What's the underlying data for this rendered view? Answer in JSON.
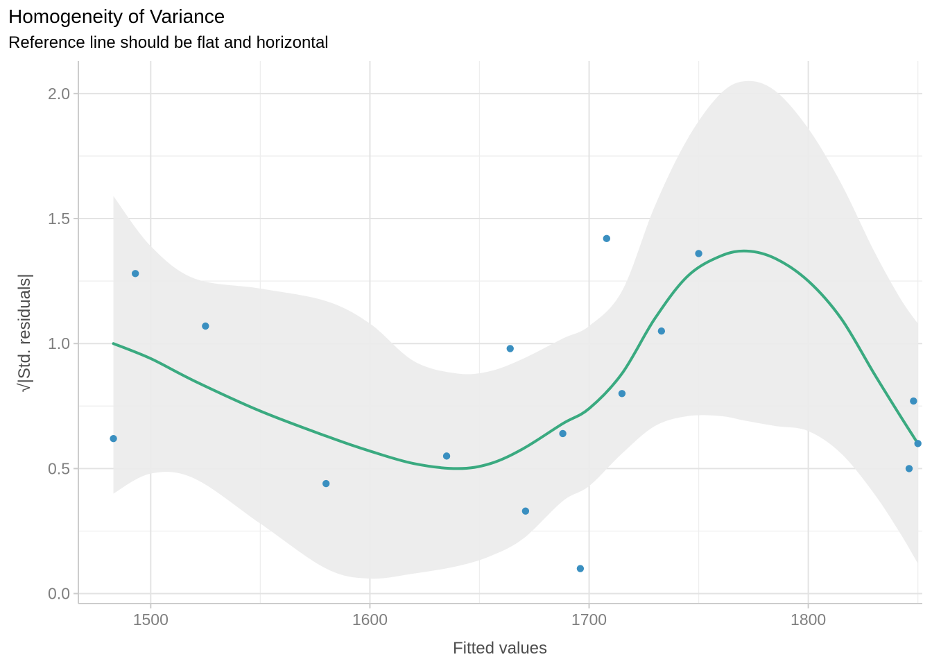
{
  "chart_data": {
    "type": "scatter",
    "title": "Homogeneity of Variance",
    "subtitle": "Reference line should be flat and horizontal",
    "xlabel": "Fitted values",
    "ylabel": "√|Std. residuals|",
    "xlim": [
      1467,
      1852
    ],
    "ylim": [
      -0.04,
      2.13
    ],
    "x_ticks": [
      1500,
      1600,
      1700,
      1800
    ],
    "y_ticks": [
      0.0,
      0.5,
      1.0,
      1.5,
      2.0
    ],
    "x_tick_labels": [
      "1500",
      "1600",
      "1700",
      "1800"
    ],
    "y_tick_labels": [
      "0.0",
      "0.5",
      "1.0",
      "1.5",
      "2.0"
    ],
    "grid": true,
    "colors": {
      "points": "#3a8fc0",
      "smooth": "#3aaa80",
      "band": "#ebebeb"
    },
    "points": [
      {
        "x": 1483,
        "y": 0.62
      },
      {
        "x": 1493,
        "y": 1.28
      },
      {
        "x": 1525,
        "y": 1.07
      },
      {
        "x": 1580,
        "y": 0.44
      },
      {
        "x": 1635,
        "y": 0.55
      },
      {
        "x": 1664,
        "y": 0.98
      },
      {
        "x": 1671,
        "y": 0.33
      },
      {
        "x": 1688,
        "y": 0.64
      },
      {
        "x": 1696,
        "y": 0.1
      },
      {
        "x": 1708,
        "y": 1.42
      },
      {
        "x": 1715,
        "y": 0.8
      },
      {
        "x": 1733,
        "y": 1.05
      },
      {
        "x": 1750,
        "y": 1.36
      },
      {
        "x": 1846,
        "y": 0.5
      },
      {
        "x": 1848,
        "y": 0.77
      },
      {
        "x": 1850,
        "y": 0.6
      }
    ],
    "smooth": [
      {
        "x": 1483,
        "y": 1.0,
        "lo": 0.4,
        "hi": 1.59
      },
      {
        "x": 1500,
        "y": 0.94,
        "lo": 0.48,
        "hi": 1.39
      },
      {
        "x": 1520,
        "y": 0.85,
        "lo": 0.46,
        "hi": 1.26
      },
      {
        "x": 1550,
        "y": 0.73,
        "lo": 0.28,
        "hi": 1.22
      },
      {
        "x": 1580,
        "y": 0.63,
        "lo": 0.1,
        "hi": 1.17
      },
      {
        "x": 1600,
        "y": 0.57,
        "lo": 0.06,
        "hi": 1.08
      },
      {
        "x": 1620,
        "y": 0.52,
        "lo": 0.08,
        "hi": 0.93
      },
      {
        "x": 1640,
        "y": 0.5,
        "lo": 0.11,
        "hi": 0.88
      },
      {
        "x": 1655,
        "y": 0.52,
        "lo": 0.15,
        "hi": 0.89
      },
      {
        "x": 1670,
        "y": 0.58,
        "lo": 0.22,
        "hi": 0.94
      },
      {
        "x": 1688,
        "y": 0.68,
        "lo": 0.37,
        "hi": 1.02
      },
      {
        "x": 1700,
        "y": 0.74,
        "lo": 0.43,
        "hi": 1.07
      },
      {
        "x": 1715,
        "y": 0.88,
        "lo": 0.56,
        "hi": 1.21
      },
      {
        "x": 1730,
        "y": 1.1,
        "lo": 0.67,
        "hi": 1.55
      },
      {
        "x": 1745,
        "y": 1.27,
        "lo": 0.71,
        "hi": 1.82
      },
      {
        "x": 1760,
        "y": 1.35,
        "lo": 0.71,
        "hi": 2.0
      },
      {
        "x": 1772,
        "y": 1.37,
        "lo": 0.69,
        "hi": 2.05
      },
      {
        "x": 1785,
        "y": 1.34,
        "lo": 0.67,
        "hi": 2.01
      },
      {
        "x": 1800,
        "y": 1.25,
        "lo": 0.65,
        "hi": 1.86
      },
      {
        "x": 1815,
        "y": 1.1,
        "lo": 0.56,
        "hi": 1.64
      },
      {
        "x": 1830,
        "y": 0.88,
        "lo": 0.4,
        "hi": 1.37
      },
      {
        "x": 1842,
        "y": 0.71,
        "lo": 0.24,
        "hi": 1.18
      },
      {
        "x": 1850,
        "y": 0.6,
        "lo": 0.12,
        "hi": 1.08
      }
    ]
  }
}
